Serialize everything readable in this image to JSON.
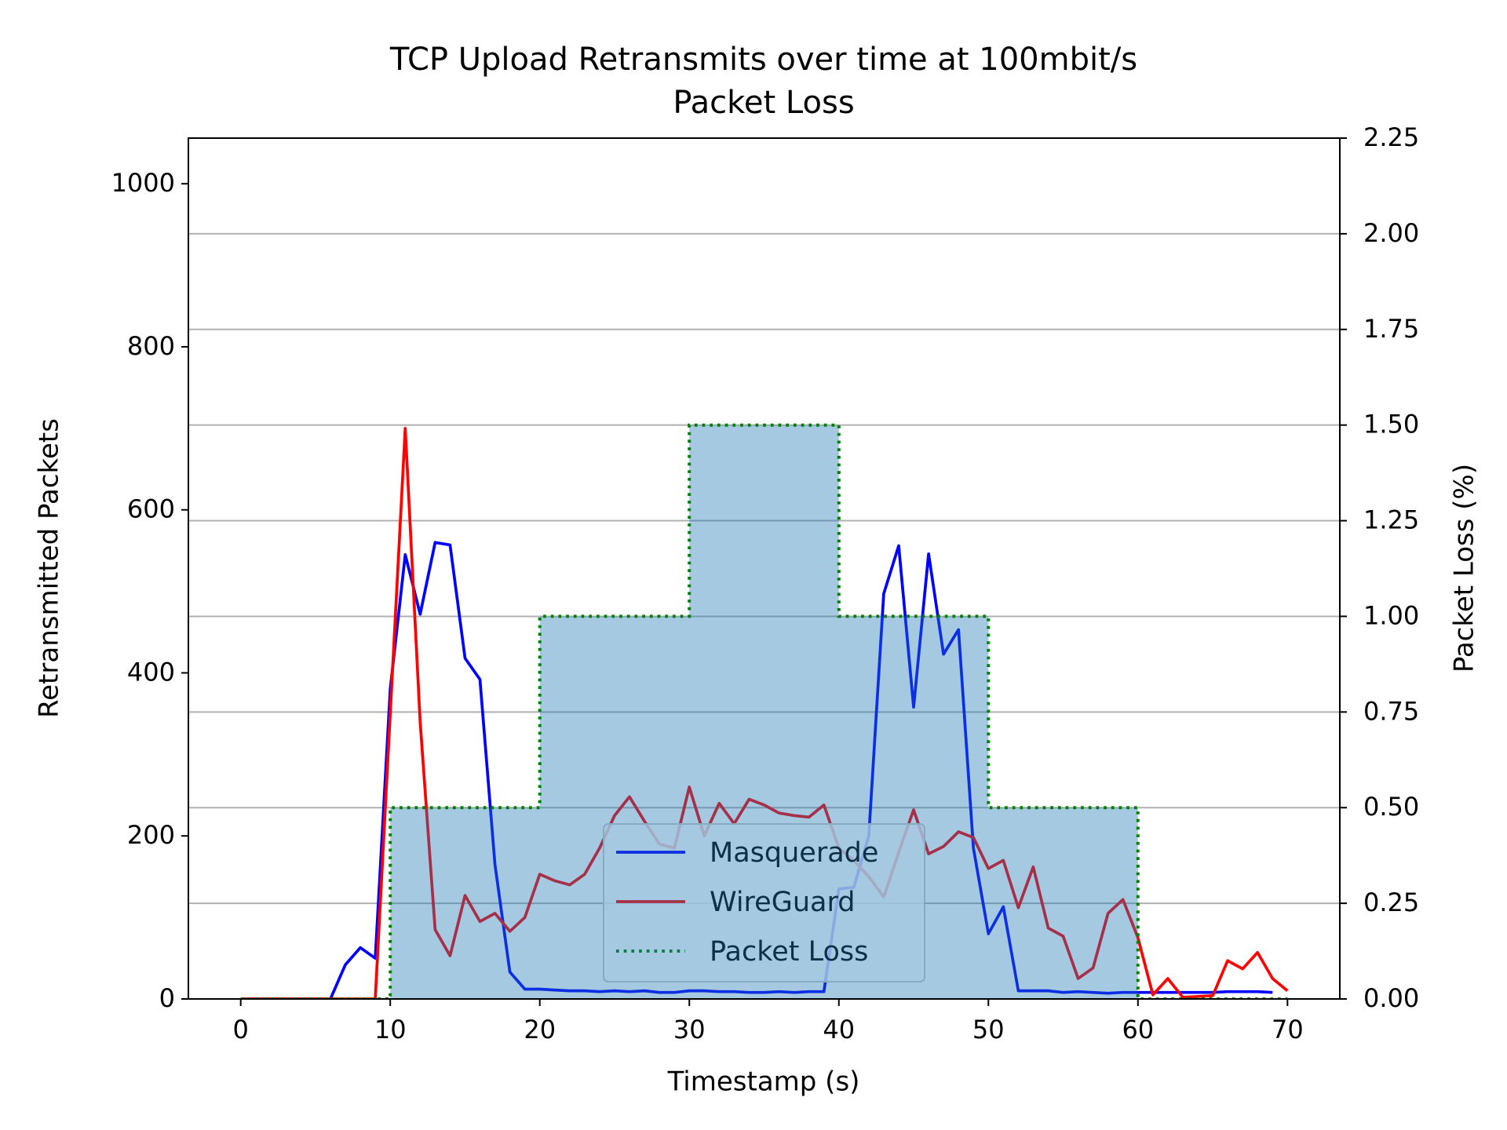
{
  "chart_data": {
    "type": "line",
    "title": [
      "TCP Upload Retransmits over time at 100mbit/s",
      "Packet Loss"
    ],
    "xlabel": "Timestamp (s)",
    "ylabel": "Retransmitted Packets",
    "y2label": "Packet Loss (%)",
    "xlim": [
      -3.5,
      73.5
    ],
    "xticks": [
      0,
      10,
      20,
      30,
      40,
      50,
      60,
      70
    ],
    "ylim": [
      0,
      1056
    ],
    "yticks": [
      0,
      200,
      400,
      600,
      800,
      1000
    ],
    "y2lim": [
      0,
      2.25
    ],
    "y2ticks": [
      {
        "value": 0,
        "label": "0.00"
      },
      {
        "value": 0.25,
        "label": "0.25"
      },
      {
        "value": 0.5,
        "label": "0.50"
      },
      {
        "value": 0.75,
        "label": "0.75"
      },
      {
        "value": 1,
        "label": "1.00"
      },
      {
        "value": 1.25,
        "label": "1.25"
      },
      {
        "value": 1.5,
        "label": "1.50"
      },
      {
        "value": 1.75,
        "label": "1.75"
      },
      {
        "value": 2,
        "label": "2.00"
      },
      {
        "value": 2.25,
        "label": "2.25"
      }
    ],
    "y2_color": "green",
    "grid": "y2",
    "legend": "lower center",
    "series": [
      {
        "name": "Masquerade",
        "color": "blue",
        "x": [
          0,
          1,
          2,
          3,
          4,
          5,
          6,
          7,
          8,
          9,
          10,
          11,
          12,
          13,
          14,
          15,
          16,
          17,
          18,
          19,
          20,
          21,
          22,
          23,
          24,
          25,
          26,
          27,
          28,
          29,
          30,
          31,
          32,
          33,
          34,
          35,
          36,
          37,
          38,
          39,
          40,
          41,
          42,
          43,
          44,
          45,
          46,
          47,
          48,
          49,
          50,
          51,
          52,
          53,
          54,
          55,
          56,
          57,
          58,
          59,
          60,
          61,
          62,
          63,
          64,
          65,
          66,
          67,
          68,
          69
        ],
        "values": [
          0,
          0,
          0,
          0,
          0,
          0,
          0,
          42,
          63,
          50,
          380,
          545,
          472,
          560,
          557,
          418,
          392,
          165,
          33,
          12,
          12,
          11,
          10,
          10,
          9,
          10,
          9,
          10,
          8,
          8,
          10,
          10,
          9,
          9,
          8,
          8,
          9,
          8,
          9,
          9,
          135,
          137,
          200,
          497,
          556,
          358,
          546,
          423,
          453,
          185,
          80,
          113,
          10,
          10,
          10,
          8,
          9,
          8,
          7,
          8,
          8,
          8,
          8,
          8,
          8,
          8,
          9,
          9,
          9,
          8
        ]
      },
      {
        "name": "WireGuard",
        "color": "red",
        "x": [
          0,
          1,
          2,
          3,
          4,
          5,
          6,
          7,
          8,
          9,
          10,
          11,
          12,
          13,
          14,
          15,
          16,
          17,
          18,
          19,
          20,
          21,
          22,
          23,
          24,
          25,
          26,
          27,
          28,
          29,
          30,
          31,
          32,
          33,
          34,
          35,
          36,
          37,
          38,
          39,
          40,
          41,
          42,
          43,
          44,
          45,
          46,
          47,
          48,
          49,
          50,
          51,
          52,
          53,
          54,
          55,
          56,
          57,
          58,
          59,
          60,
          61,
          62,
          63,
          64,
          65,
          66,
          67,
          68,
          69,
          70
        ],
        "values": [
          0,
          0,
          0,
          0,
          0,
          0,
          0,
          0,
          0,
          0,
          350,
          700,
          340,
          85,
          53,
          127,
          95,
          105,
          83,
          100,
          153,
          145,
          140,
          153,
          185,
          225,
          248,
          218,
          190,
          185,
          260,
          200,
          240,
          215,
          245,
          238,
          228,
          225,
          223,
          238,
          185,
          170,
          150,
          125,
          180,
          232,
          178,
          187,
          205,
          198,
          160,
          170,
          112,
          162,
          87,
          77,
          25,
          38,
          105,
          122,
          75,
          5,
          25,
          2,
          3,
          4,
          47,
          37,
          57,
          25,
          10
        ]
      },
      {
        "name": "Packet Loss",
        "color": "green",
        "axis": "y2",
        "linestyle": "dotted",
        "drawstyle": "steps-post",
        "fill_color": "#1f77b4",
        "x": [
          0,
          10,
          20,
          30,
          40,
          50,
          60,
          70
        ],
        "values": [
          0,
          0.5,
          1,
          1.5,
          1,
          0.5,
          0,
          0
        ]
      }
    ]
  }
}
